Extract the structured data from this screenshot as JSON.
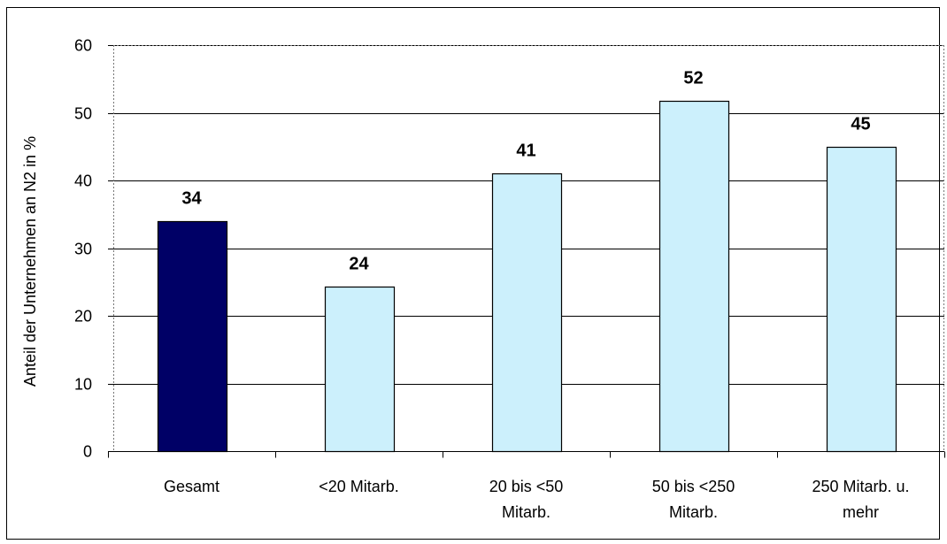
{
  "chart_data": {
    "type": "bar",
    "title": "",
    "xlabel": "",
    "ylabel": "Anteil der Unternehmen an N2 in %",
    "ylim": [
      0,
      60
    ],
    "yticks": [
      0,
      10,
      20,
      30,
      40,
      50,
      60
    ],
    "grid": true,
    "legend": "none",
    "categories": [
      [
        "Gesamt"
      ],
      [
        "<20 Mitarb."
      ],
      [
        "20 bis <50",
        "Mitarb."
      ],
      [
        "50 bis <250",
        "Mitarb."
      ],
      [
        "250 Mitarb. u.",
        "mehr"
      ]
    ],
    "values": [
      34,
      24.3,
      41,
      51.8,
      45
    ],
    "data_labels": [
      "34",
      "24",
      "41",
      "52",
      "45"
    ],
    "colors": {
      "highlight": "#000066",
      "bar": "#ccf0fc",
      "bar_border": "#000000",
      "grid": "#000000"
    },
    "highlight_index": 0
  }
}
